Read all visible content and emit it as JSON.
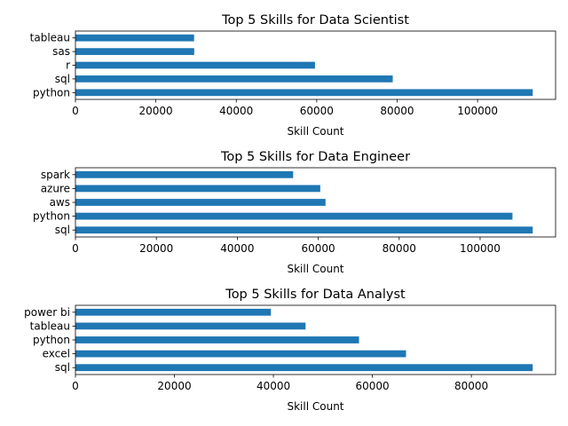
{
  "chart_data": [
    {
      "type": "bar",
      "orientation": "horizontal",
      "title": "Top 5 Skills for Data Scientist",
      "xlabel": "Skill Count",
      "ylabel": "",
      "categories": [
        "python",
        "sql",
        "r",
        "sas",
        "tableau"
      ],
      "values": [
        113711,
        78910,
        59566,
        29534,
        29510
      ],
      "xlim": [
        0,
        119397
      ],
      "xticks": [
        0,
        20000,
        40000,
        60000,
        80000,
        100000
      ],
      "xtick_labels": [
        "0",
        "20000",
        "40000",
        "60000",
        "80000",
        "100000"
      ],
      "color": "#1f77b4",
      "grid": false
    },
    {
      "type": "bar",
      "orientation": "horizontal",
      "title": "Top 5 Skills for Data Engineer",
      "xlabel": "Skill Count",
      "ylabel": "",
      "categories": [
        "sql",
        "python",
        "aws",
        "azure",
        "spark"
      ],
      "values": [
        113000,
        108000,
        61800,
        60500,
        53800
      ],
      "xlim": [
        0,
        118650
      ],
      "xticks": [
        0,
        20000,
        40000,
        60000,
        80000,
        100000
      ],
      "xtick_labels": [
        "0",
        "20000",
        "40000",
        "60000",
        "80000",
        "100000"
      ],
      "color": "#1f77b4",
      "grid": false
    },
    {
      "type": "bar",
      "orientation": "horizontal",
      "title": "Top 5 Skills for Data Analyst",
      "xlabel": "Skill Count",
      "ylabel": "",
      "categories": [
        "sql",
        "excel",
        "python",
        "tableau",
        "power bi"
      ],
      "values": [
        92400,
        66800,
        57300,
        46500,
        39500
      ],
      "xlim": [
        0,
        97020
      ],
      "xticks": [
        0,
        20000,
        40000,
        60000,
        80000
      ],
      "xtick_labels": [
        "0",
        "20000",
        "40000",
        "60000",
        "80000"
      ],
      "color": "#1f77b4",
      "grid": false
    }
  ]
}
